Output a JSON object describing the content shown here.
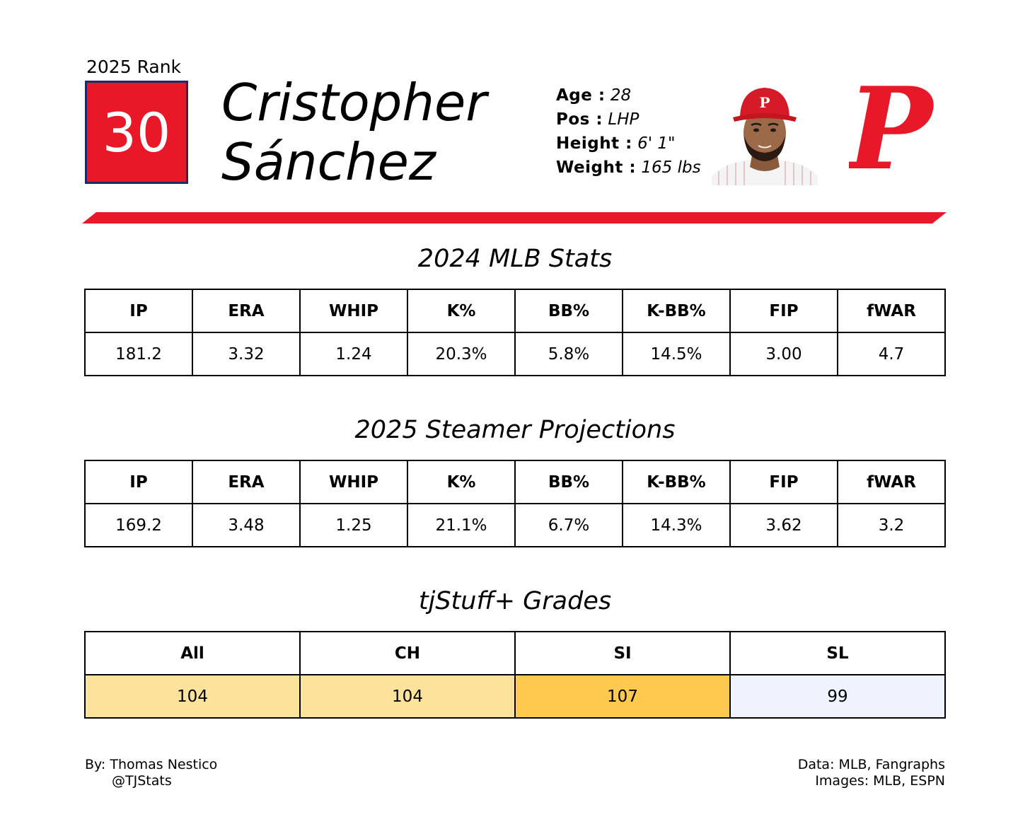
{
  "rank": {
    "label": "2025 Rank",
    "value": "30"
  },
  "player": {
    "first_name": "Cristopher",
    "last_name": "Sánchez"
  },
  "bio": [
    {
      "key": "Age :",
      "value": "28"
    },
    {
      "key": "Pos :",
      "value": "LHP"
    },
    {
      "key": "Height :",
      "value": "6' 1\""
    },
    {
      "key": "Weight :",
      "value": "165 lbs"
    }
  ],
  "team": {
    "logo_letter": "P",
    "color": "#e81828",
    "navy": "#1b2b6b"
  },
  "mlb_stats": {
    "title": "2024 MLB Stats",
    "headers": [
      "IP",
      "ERA",
      "WHIP",
      "K%",
      "BB%",
      "K-BB%",
      "FIP",
      "fWAR"
    ],
    "values": [
      "181.2",
      "3.32",
      "1.24",
      "20.3%",
      "5.8%",
      "14.5%",
      "3.00",
      "4.7"
    ]
  },
  "projections": {
    "title": "2025 Steamer Projections",
    "headers": [
      "IP",
      "ERA",
      "WHIP",
      "K%",
      "BB%",
      "K-BB%",
      "FIP",
      "fWAR"
    ],
    "values": [
      "169.2",
      "3.48",
      "1.25",
      "21.1%",
      "6.7%",
      "14.3%",
      "3.62",
      "3.2"
    ]
  },
  "grades": {
    "title": "tjStuff+ Grades",
    "headers": [
      "All",
      "CH",
      "SI",
      "SL"
    ],
    "values": [
      "104",
      "104",
      "107",
      "99"
    ],
    "cell_colors": [
      "#fde29c",
      "#fde29c",
      "#fec94e",
      "#eef3fd"
    ]
  },
  "footer": {
    "author": "By: Thomas Nestico",
    "handle": "@TJStats",
    "data_credit": "Data: MLB, Fangraphs",
    "image_credit": "Images: MLB, ESPN"
  }
}
